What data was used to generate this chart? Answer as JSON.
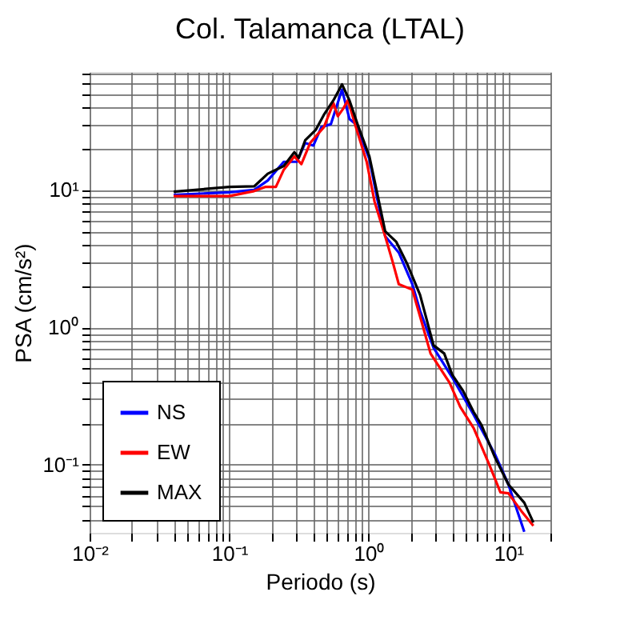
{
  "chart_data": {
    "type": "line",
    "title": "Col. Talamanca (LTAL)",
    "xlabel": "Periodo (s)",
    "ylabel": "PSA (cm/s²)",
    "log": "xy",
    "grid": true,
    "legend": "bottom left",
    "line_style": "solid",
    "xlim": [
      0.01,
      20
    ],
    "ylim": [
      0.032,
      72
    ],
    "xticks": [
      {
        "value": 0.01,
        "label": "10⁻²"
      },
      {
        "value": 0.02,
        "label": null
      },
      {
        "value": 0.03,
        "label": null
      },
      {
        "value": 0.04,
        "label": null
      },
      {
        "value": 0.05,
        "label": null
      },
      {
        "value": 0.06,
        "label": null
      },
      {
        "value": 0.07,
        "label": null
      },
      {
        "value": 0.08,
        "label": null
      },
      {
        "value": 0.09,
        "label": null
      },
      {
        "value": 0.1,
        "label": "10⁻¹"
      },
      {
        "value": 0.2,
        "label": null
      },
      {
        "value": 0.3,
        "label": null
      },
      {
        "value": 0.4,
        "label": null
      },
      {
        "value": 0.5,
        "label": null
      },
      {
        "value": 0.6,
        "label": null
      },
      {
        "value": 0.7,
        "label": null
      },
      {
        "value": 0.8,
        "label": null
      },
      {
        "value": 0.9,
        "label": null
      },
      {
        "value": 1,
        "label": "10⁰"
      },
      {
        "value": 2,
        "label": null
      },
      {
        "value": 3,
        "label": null
      },
      {
        "value": 4,
        "label": null
      },
      {
        "value": 5,
        "label": null
      },
      {
        "value": 6,
        "label": null
      },
      {
        "value": 7,
        "label": null
      },
      {
        "value": 8,
        "label": null
      },
      {
        "value": 9,
        "label": null
      },
      {
        "value": 10,
        "label": "10¹"
      },
      {
        "value": 20,
        "label": null
      }
    ],
    "yticks": [
      {
        "value": 0.04,
        "label": null
      },
      {
        "value": 0.05,
        "label": null
      },
      {
        "value": 0.06,
        "label": null
      },
      {
        "value": 0.07,
        "label": null
      },
      {
        "value": 0.08,
        "label": null
      },
      {
        "value": 0.09,
        "label": null
      },
      {
        "value": 0.1,
        "label": "10⁻¹"
      },
      {
        "value": 0.2,
        "label": null
      },
      {
        "value": 0.3,
        "label": null
      },
      {
        "value": 0.4,
        "label": null
      },
      {
        "value": 0.5,
        "label": null
      },
      {
        "value": 0.6,
        "label": null
      },
      {
        "value": 0.7,
        "label": null
      },
      {
        "value": 0.8,
        "label": null
      },
      {
        "value": 0.9,
        "label": null
      },
      {
        "value": 1,
        "label": "10⁰"
      },
      {
        "value": 2,
        "label": null
      },
      {
        "value": 3,
        "label": null
      },
      {
        "value": 4,
        "label": null
      },
      {
        "value": 5,
        "label": null
      },
      {
        "value": 6,
        "label": null
      },
      {
        "value": 7,
        "label": null
      },
      {
        "value": 8,
        "label": null
      },
      {
        "value": 9,
        "label": null
      },
      {
        "value": 10,
        "label": "10¹"
      },
      {
        "value": 20,
        "label": null
      },
      {
        "value": 30,
        "label": null
      },
      {
        "value": 40,
        "label": null
      },
      {
        "value": 50,
        "label": null
      },
      {
        "value": 60,
        "label": null
      },
      {
        "value": 70,
        "label": null
      }
    ],
    "series": [
      {
        "name": "NS",
        "color": "#0000ff",
        "x": [
          0.04,
          0.1,
          0.151,
          0.189,
          0.246,
          0.305,
          0.35,
          0.401,
          0.457,
          0.535,
          0.643,
          0.727,
          0.808,
          1.01,
          1.15,
          1.31,
          1.64,
          2.05,
          2.33,
          2.91,
          3.96,
          5.64,
          8.02,
          10,
          13.0
        ],
        "values": [
          9.2,
          9.6,
          10,
          11.7,
          16.0,
          16.0,
          21.9,
          21.0,
          28.6,
          30.0,
          53.6,
          32.8,
          30,
          16.8,
          8.6,
          4.6,
          3.5,
          2.06,
          1.32,
          0.71,
          0.432,
          0.231,
          0.119,
          0.072,
          0.0325
        ]
      },
      {
        "name": "EW",
        "color": "#ff0000",
        "x": [
          0.04,
          0.1,
          0.151,
          0.181,
          0.216,
          0.246,
          0.293,
          0.329,
          0.38,
          0.477,
          0.558,
          0.6,
          0.658,
          0.709,
          0.808,
          0.966,
          1.1,
          1.31,
          1.49,
          1.64,
          2.05,
          2.33,
          2.77,
          3.79,
          4.52,
          5.64,
          7.33,
          8.77,
          10,
          12.4,
          15.1
        ],
        "values": [
          9.0,
          9.0,
          9.8,
          10.5,
          10.5,
          14.0,
          17.5,
          15.4,
          21.9,
          28.6,
          42.8,
          34.3,
          39.2,
          44.8,
          28.6,
          16.0,
          8.2,
          4.6,
          2.94,
          2.06,
          1.88,
          1.2,
          0.645,
          0.395,
          0.264,
          0.185,
          0.099,
          0.063,
          0.062,
          0.046,
          0.036
        ]
      },
      {
        "name": "MAX",
        "color": "#000000",
        "x": [
          0.04,
          0.1,
          0.151,
          0.189,
          0.246,
          0.293,
          0.315,
          0.35,
          0.418,
          0.477,
          0.558,
          0.643,
          0.727,
          0.845,
          1.01,
          1.15,
          1.31,
          1.57,
          1.87,
          2.33,
          2.91,
          3.47,
          3.96,
          4.73,
          5.64,
          6.43,
          8.02,
          10,
          13.0,
          15.1
        ],
        "values": [
          9.7,
          10.5,
          10.6,
          13.1,
          14.9,
          18.8,
          17.1,
          22.9,
          27.4,
          35.2,
          44.8,
          58.5,
          44.8,
          28.6,
          17.5,
          9.4,
          5.0,
          4.2,
          2.94,
          1.72,
          0.74,
          0.645,
          0.452,
          0.346,
          0.242,
          0.194,
          0.113,
          0.072,
          0.053,
          0.038
        ]
      }
    ]
  }
}
